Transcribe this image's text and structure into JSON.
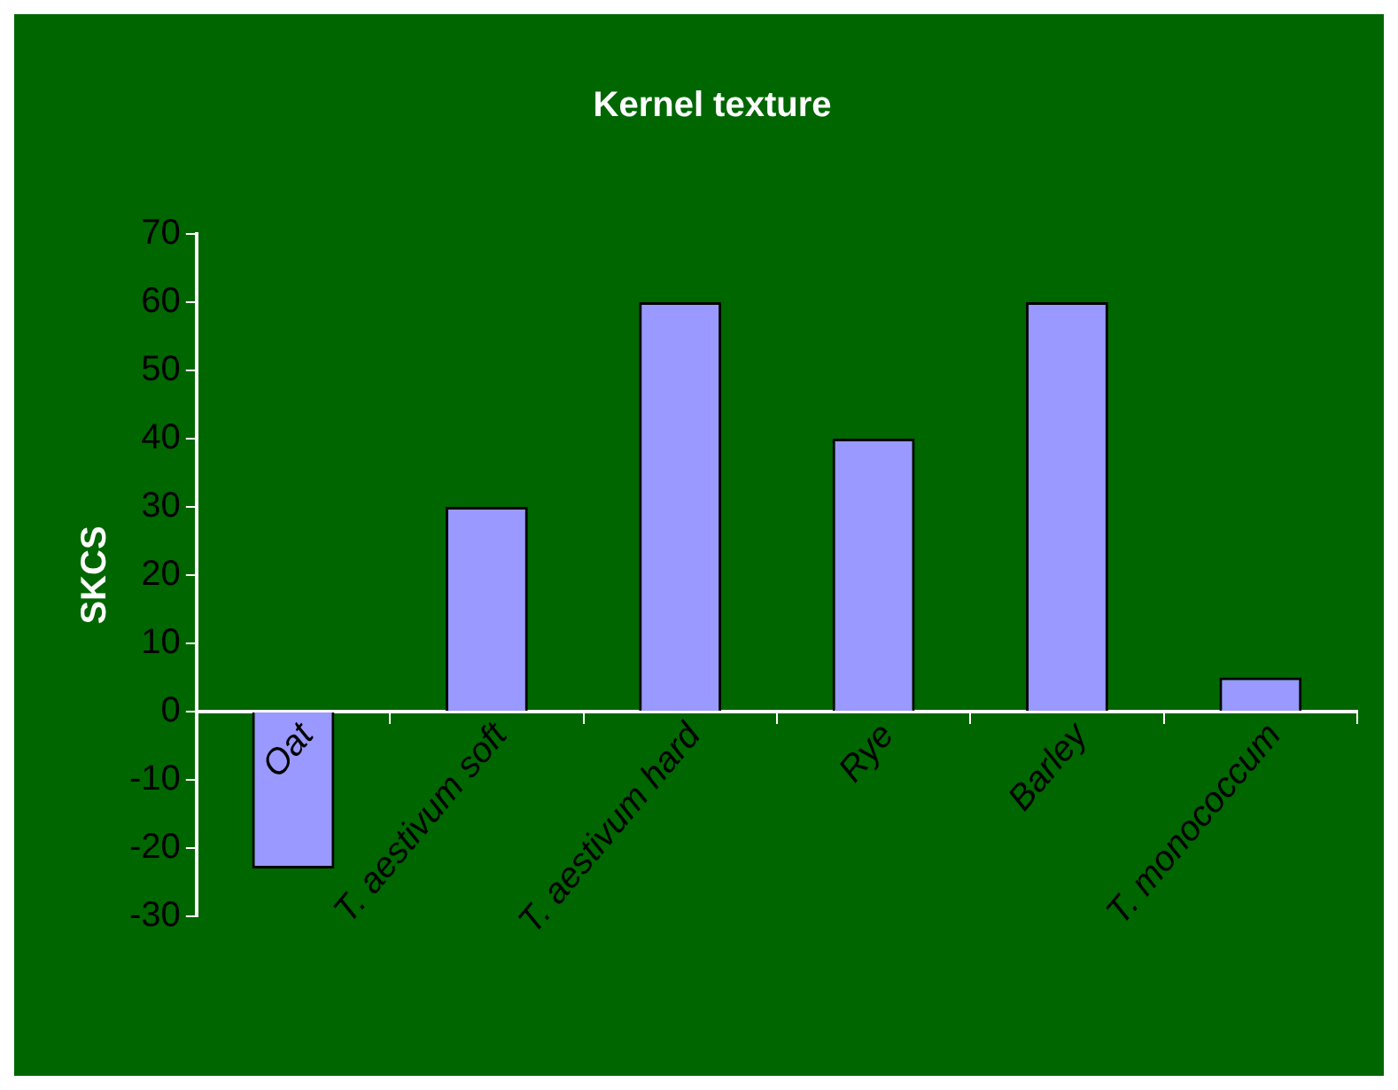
{
  "chart_data": {
    "type": "bar",
    "title": "Kernel texture",
    "ylabel": "SKCS",
    "categories": [
      "Oat",
      "T. aestivum soft",
      "T. aestivum hard",
      "Rye",
      "Barley",
      "T. monococcum"
    ],
    "values": [
      -23,
      30,
      60,
      40,
      60,
      5
    ],
    "color": "#9999ff",
    "ylim": [
      -30,
      70
    ],
    "yticks": [
      -30,
      -20,
      -10,
      0,
      10,
      20,
      30,
      40,
      50,
      60,
      70
    ],
    "grid": false,
    "legend": false
  }
}
